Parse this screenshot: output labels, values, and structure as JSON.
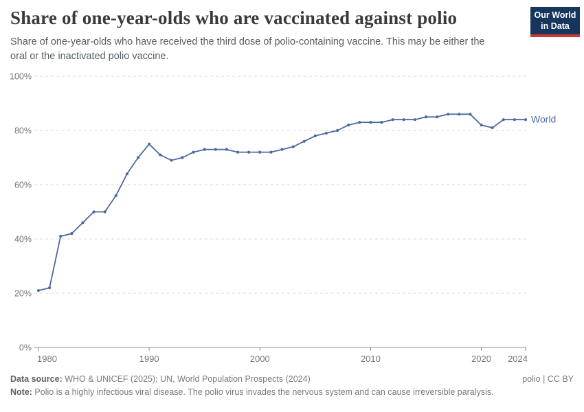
{
  "header": {
    "title": "Share of one-year-olds who are vaccinated against polio",
    "subtitle": "Share of one-year-olds who have received the third dose of polio-containing vaccine. This may be either the oral or the inactivated polio vaccine.",
    "logo": {
      "line1": "Our World",
      "line2": "in Data",
      "bg_color": "#17365d",
      "accent_color": "#cd3731"
    }
  },
  "chart_data": {
    "type": "line",
    "title": "Share of one-year-olds who are vaccinated against polio",
    "xlabel": "",
    "ylabel": "",
    "xlim": [
      1980,
      2024
    ],
    "ylim": [
      0,
      100
    ],
    "grid": "horizontal-dashed",
    "legend_position": "end-of-line-label",
    "x_ticks": [
      1980,
      1990,
      2000,
      2010,
      2020,
      2024
    ],
    "x_tick_labels": [
      "1980",
      "1990",
      "2000",
      "2010",
      "2020",
      "2024"
    ],
    "y_ticks": [
      0,
      20,
      40,
      60,
      80,
      100
    ],
    "y_tick_labels": [
      "0%",
      "20%",
      "40%",
      "60%",
      "80%",
      "100%"
    ],
    "series": [
      {
        "name": "World",
        "color": "#4c6a9c",
        "x": [
          1980,
          1981,
          1982,
          1983,
          1984,
          1985,
          1986,
          1987,
          1988,
          1989,
          1990,
          1991,
          1992,
          1993,
          1994,
          1995,
          1996,
          1997,
          1998,
          1999,
          2000,
          2001,
          2002,
          2003,
          2004,
          2005,
          2006,
          2007,
          2008,
          2009,
          2010,
          2011,
          2012,
          2013,
          2014,
          2015,
          2016,
          2017,
          2018,
          2019,
          2020,
          2021,
          2022,
          2023,
          2024
        ],
        "values": [
          21,
          22,
          41,
          42,
          46,
          50,
          50,
          56,
          64,
          70,
          75,
          71,
          69,
          70,
          72,
          73,
          73,
          73,
          72,
          72,
          72,
          72,
          73,
          74,
          76,
          78,
          79,
          80,
          82,
          83,
          83,
          83,
          84,
          84,
          84,
          85,
          85,
          86,
          86,
          86,
          82,
          81,
          84,
          84,
          84
        ]
      }
    ]
  },
  "axis_colors": {
    "grid": "#d9d9d9",
    "axis_line": "#8f8f8f",
    "tick_label": "#757575"
  },
  "footer": {
    "datasource_label": "Data source:",
    "datasource_text": " WHO & UNICEF (2025); UN, World Population Prospects (2024)",
    "license": "polio | CC BY",
    "note_label": "Note:",
    "note_text": " Polio is a highly infectious viral disease. The polio virus invades the nervous system and can cause irreversible paralysis."
  }
}
